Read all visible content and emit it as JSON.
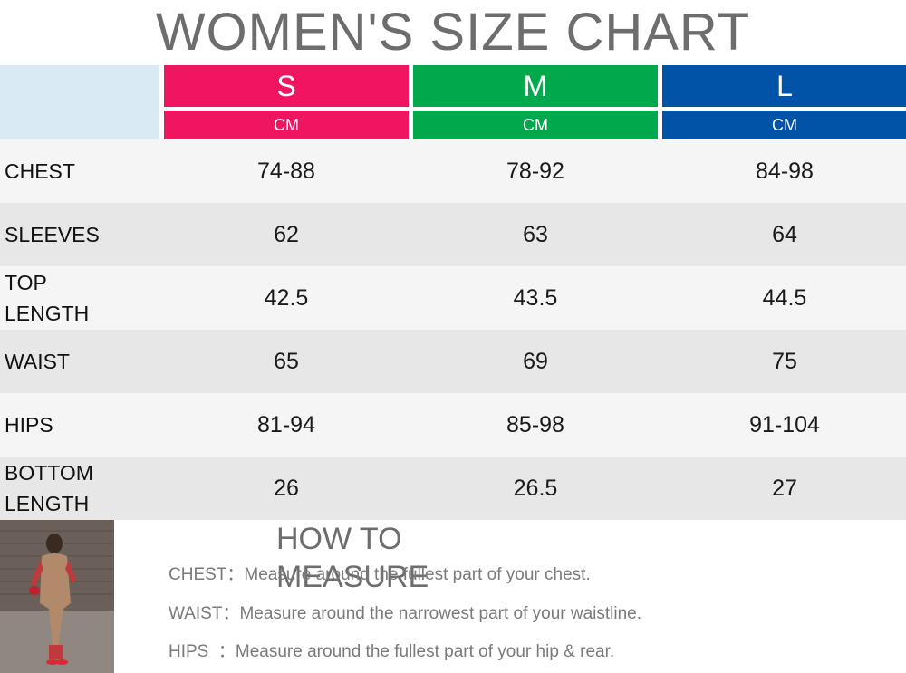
{
  "title": "WOMEN'S SIZE CHART",
  "sizes": [
    {
      "label": "S",
      "unit": "CM",
      "color": "#ef1560"
    },
    {
      "label": "M",
      "unit": "CM",
      "color": "#02a84c"
    },
    {
      "label": "L",
      "unit": "CM",
      "color": "#0053a6"
    }
  ],
  "rows": [
    {
      "name": "CHEST",
      "values": [
        "74-88",
        "78-92",
        "84-98"
      ]
    },
    {
      "name": "SLEEVES",
      "values": [
        "62",
        "63",
        "64"
      ]
    },
    {
      "name": "TOP\nLENGTH",
      "values": [
        "42.5",
        "43.5",
        "44.5"
      ]
    },
    {
      "name": "WAIST",
      "values": [
        "65",
        "69",
        "75"
      ]
    },
    {
      "name": "HIPS",
      "values": [
        "81-94",
        "85-98",
        "91-104"
      ]
    },
    {
      "name": "BOTTOM\nLENGTH",
      "values": [
        "26",
        "26.5",
        "27"
      ]
    }
  ],
  "how_to_measure": {
    "title": "HOW TO MEASURE",
    "items": [
      {
        "key": "CHEST：",
        "text": "Measure around the fullest part of your chest."
      },
      {
        "key": "WAIST：",
        "text": "Measure around the narrowest part of your waistline."
      },
      {
        "key": "HIPS  ：",
        "text": "Measure around the fullest part of your hip & rear."
      }
    ]
  },
  "colors": {
    "row_light": "#f5f5f5",
    "row_dark": "#e7e7e7",
    "corner": "#daeaf4"
  }
}
